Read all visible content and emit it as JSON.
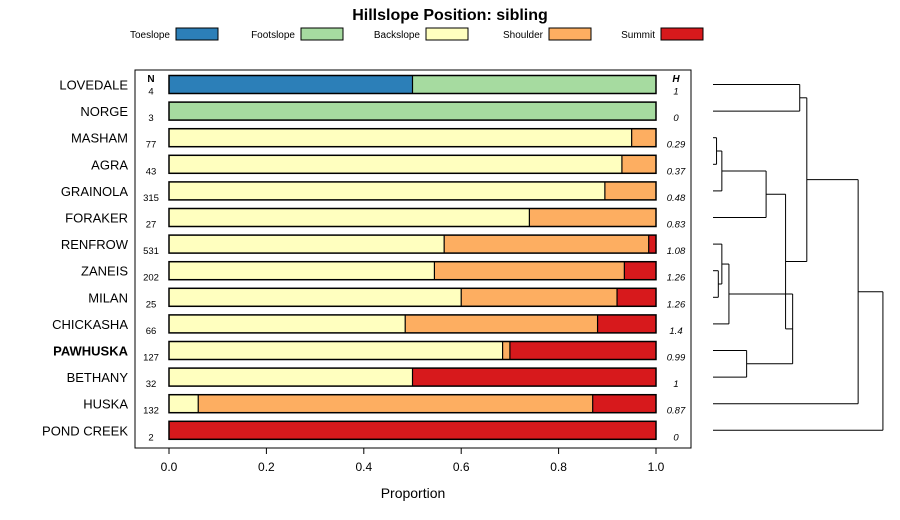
{
  "chart_data": {
    "type": "bar",
    "orientation": "horizontal",
    "stacked": true,
    "title": "Hillslope Position: sibling",
    "xlabel": "Proportion",
    "ylabel": "",
    "xlim": [
      0,
      1
    ],
    "xticks": [
      "0.0",
      "0.2",
      "0.4",
      "0.6",
      "0.8",
      "1.0"
    ],
    "n_header": "N",
    "h_header": "H",
    "highlight": "PAWHUSKA",
    "legend_placement": "top",
    "series": [
      {
        "name": "Toeslope",
        "color": "#2c7fb8"
      },
      {
        "name": "Footslope",
        "color": "#a6dba0"
      },
      {
        "name": "Backslope",
        "color": "#ffffbf"
      },
      {
        "name": "Shoulder",
        "color": "#fdae61"
      },
      {
        "name": "Summit",
        "color": "#d7191c"
      }
    ],
    "categories": [
      {
        "name": "LOVEDALE",
        "n": "4",
        "h": "1",
        "values": [
          0.5,
          0.5,
          0,
          0,
          0
        ]
      },
      {
        "name": "NORGE",
        "n": "3",
        "h": "0",
        "values": [
          0,
          1.0,
          0,
          0,
          0
        ]
      },
      {
        "name": "MASHAM",
        "n": "77",
        "h": "0.29",
        "values": [
          0,
          0,
          0.95,
          0.05,
          0
        ]
      },
      {
        "name": "AGRA",
        "n": "43",
        "h": "0.37",
        "values": [
          0,
          0,
          0.93,
          0.07,
          0
        ]
      },
      {
        "name": "GRAINOLA",
        "n": "315",
        "h": "0.48",
        "values": [
          0,
          0,
          0.895,
          0.105,
          0
        ]
      },
      {
        "name": "FORAKER",
        "n": "27",
        "h": "0.83",
        "values": [
          0,
          0,
          0.74,
          0.26,
          0
        ]
      },
      {
        "name": "RENFROW",
        "n": "531",
        "h": "1.08",
        "values": [
          0,
          0,
          0.565,
          0.42,
          0.015
        ]
      },
      {
        "name": "ZANEIS",
        "n": "202",
        "h": "1.26",
        "values": [
          0,
          0,
          0.545,
          0.39,
          0.065
        ]
      },
      {
        "name": "MILAN",
        "n": "25",
        "h": "1.26",
        "values": [
          0,
          0,
          0.6,
          0.32,
          0.08
        ]
      },
      {
        "name": "CHICKASHA",
        "n": "66",
        "h": "1.4",
        "values": [
          0,
          0,
          0.485,
          0.395,
          0.12
        ]
      },
      {
        "name": "PAWHUSKA",
        "n": "127",
        "h": "0.99",
        "values": [
          0,
          0,
          0.685,
          0.015,
          0.3
        ]
      },
      {
        "name": "BETHANY",
        "n": "32",
        "h": "1",
        "values": [
          0,
          0,
          0.5,
          0,
          0.5
        ]
      },
      {
        "name": "HUSKA",
        "n": "132",
        "h": "0.87",
        "values": [
          0,
          0,
          0.06,
          0.81,
          0.13
        ]
      },
      {
        "name": "POND CREEK",
        "n": "2",
        "h": "0",
        "values": [
          0,
          0,
          0,
          0,
          1.0
        ]
      }
    ],
    "dendrogram": {
      "merges": [
        {
          "id": "m1",
          "left": "MASHAM",
          "right": "AGRA",
          "height": 0.02
        },
        {
          "id": "m2",
          "left": "m1",
          "right": "GRAINOLA",
          "height": 0.05
        },
        {
          "id": "m3",
          "left": "m2",
          "right": "FORAKER",
          "height": 0.3
        },
        {
          "id": "m4",
          "left": "ZANEIS",
          "right": "MILAN",
          "height": 0.03
        },
        {
          "id": "m5",
          "left": "RENFROW",
          "right": "m4",
          "height": 0.05
        },
        {
          "id": "m6",
          "left": "m5",
          "right": "CHICKASHA",
          "height": 0.09
        },
        {
          "id": "m7",
          "left": "PAWHUSKA",
          "right": "BETHANY",
          "height": 0.19
        },
        {
          "id": "m8",
          "left": "m6",
          "right": "m7",
          "height": 0.45
        },
        {
          "id": "m9",
          "left": "m3",
          "right": "m8",
          "height": 0.41
        },
        {
          "id": "m10",
          "left": "LOVEDALE",
          "right": "NORGE",
          "height": 0.49
        },
        {
          "id": "m11",
          "left": "m10",
          "right": "m9",
          "height": 0.53
        },
        {
          "id": "m12",
          "left": "m11",
          "right": "HUSKA",
          "height": 0.82
        },
        {
          "id": "m13",
          "left": "m12",
          "right": "POND CREEK",
          "height": 0.96
        }
      ]
    }
  }
}
